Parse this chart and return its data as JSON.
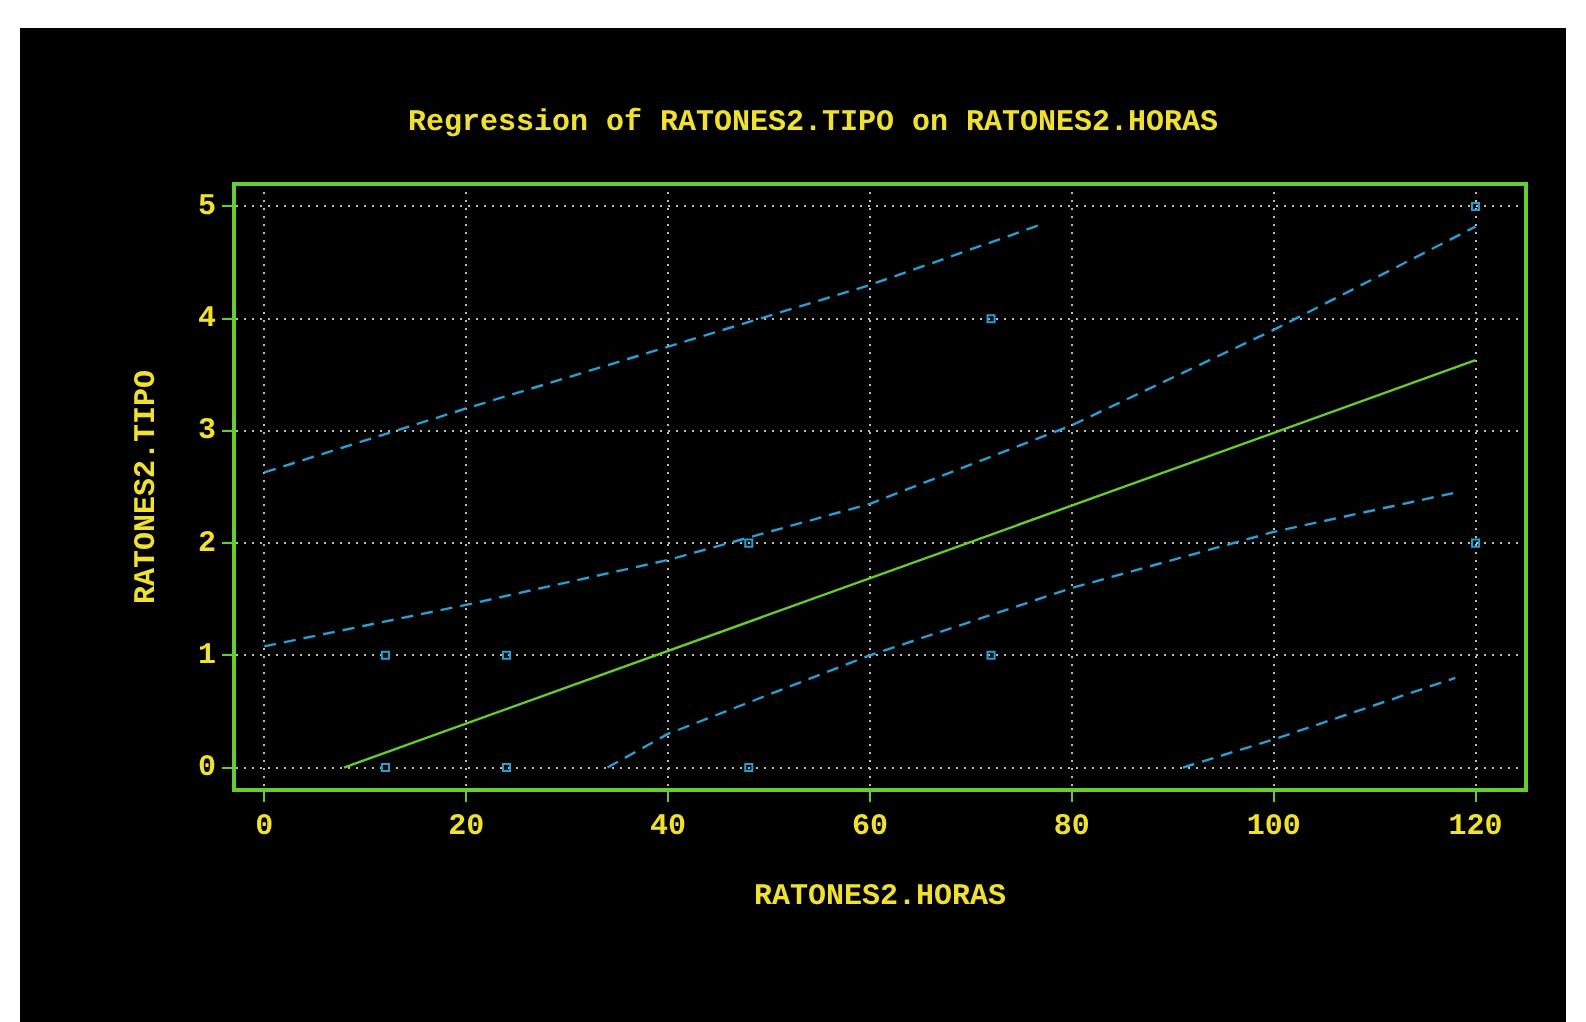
{
  "chart_data": {
    "type": "scatter",
    "title": "Regression of RATONES2.TIPO on RATONES2.HORAS",
    "xlabel": "RATONES2.HORAS",
    "ylabel": "RATONES2.TIPO",
    "xlim": [
      -3,
      125
    ],
    "xticks": [
      0,
      20,
      40,
      60,
      80,
      100,
      120
    ],
    "ylim": [
      -0.2,
      5.2
    ],
    "yticks": [
      0,
      1,
      2,
      3,
      4,
      5
    ],
    "grid": true,
    "legend": false,
    "series": [
      {
        "marker": "square",
        "color": "#1fa0d8",
        "x": [
          12,
          12,
          24,
          24,
          48,
          48,
          72,
          72,
          120,
          120
        ],
        "values": [
          0,
          1,
          0,
          1,
          0,
          2,
          1,
          4,
          5,
          2
        ]
      },
      {
        "type": "line",
        "marker": "none",
        "line_style": "solid",
        "color": "#66cc33",
        "x": [
          7.9,
          120
        ],
        "values": [
          0,
          3.63
        ]
      },
      {
        "type": "line",
        "marker": "none",
        "line_style": "dashed",
        "color": "#2a9fd6",
        "x": [
          0,
          20,
          40,
          60,
          77
        ],
        "values": [
          2.63,
          3.2,
          3.75,
          4.3,
          4.84
        ]
      },
      {
        "type": "line",
        "marker": "none",
        "line_style": "dashed",
        "color": "#2a9fd6",
        "x": [
          0,
          20,
          40,
          60,
          80,
          100,
          120
        ],
        "values": [
          1.08,
          1.45,
          1.85,
          2.35,
          3.05,
          3.9,
          4.82
        ]
      },
      {
        "type": "line",
        "marker": "none",
        "line_style": "dashed",
        "color": "#2a9fd6",
        "x": [
          34,
          40,
          60,
          80,
          100,
          118
        ],
        "values": [
          0,
          0.3,
          1.0,
          1.6,
          2.1,
          2.45
        ]
      },
      {
        "type": "line",
        "marker": "none",
        "line_style": "dashed",
        "color": "#2a9fd6",
        "x": [
          91,
          100,
          118
        ],
        "values": [
          0,
          0.25,
          0.8
        ]
      }
    ]
  }
}
